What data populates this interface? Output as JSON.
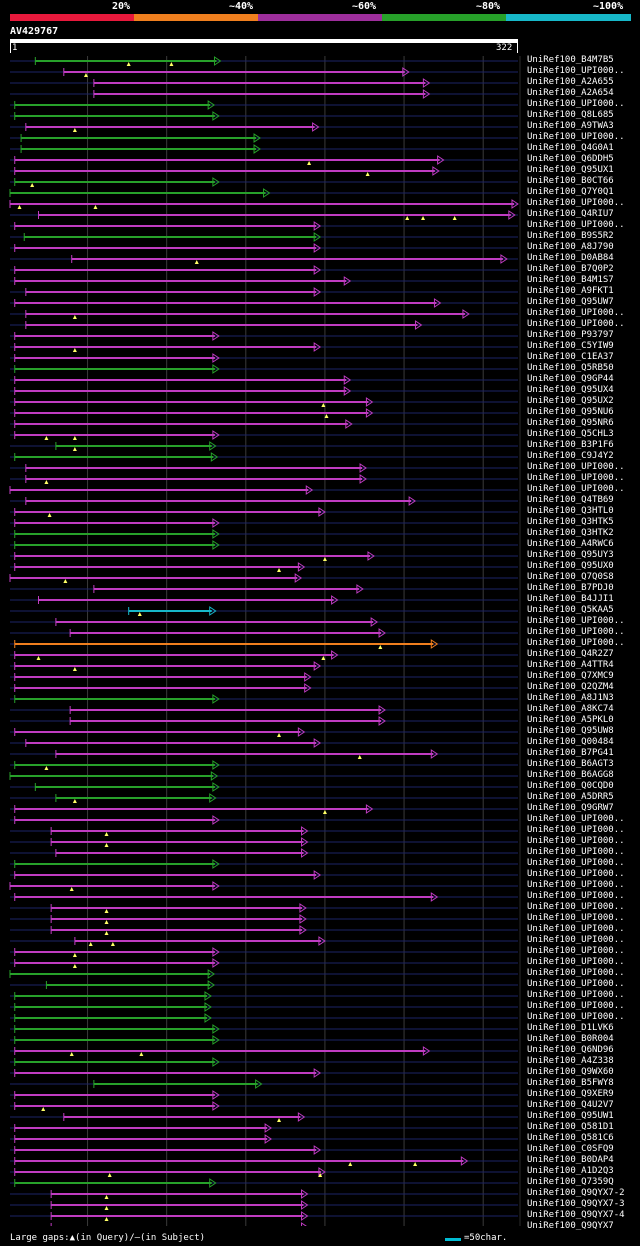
{
  "legend": {
    "labels": [
      "20%",
      "~40%",
      "~60%",
      "~80%",
      "~100%"
    ],
    "colors": [
      "#e8193c",
      "#f07f1e",
      "#9e2e9c",
      "#27a12a",
      "#17b8c9"
    ]
  },
  "query": {
    "id": "AV429767",
    "start": "1",
    "end": "322"
  },
  "footer": {
    "note": "Large gaps:▲(in Query)/—(in Subject)",
    "scale": "=50char."
  },
  "chart_data": {
    "type": "alignment-overview",
    "query_length": 322,
    "tick_positions": [
      50,
      100,
      150,
      200,
      250,
      300
    ],
    "legend_colors": {
      "green": "#27a12a",
      "magenta": "#c03cc2",
      "cyan": "#17b8c9",
      "orange": "#f07f1e"
    },
    "hits": [
      {
        "label": "UniRef100_B4M7B5",
        "start": 17,
        "end": 134,
        "color": "green",
        "gaps": [
          76,
          103
        ]
      },
      {
        "label": "UniRef100_UPI000..",
        "start": 35,
        "end": 253,
        "color": "magenta",
        "gaps": [
          49
        ]
      },
      {
        "label": "UniRef100_A2A655",
        "start": 54,
        "end": 266,
        "color": "magenta",
        "gaps": []
      },
      {
        "label": "UniRef100_A2A654",
        "start": 54,
        "end": 266,
        "color": "magenta",
        "gaps": []
      },
      {
        "label": "UniRef100_UPI000..",
        "start": 4,
        "end": 130,
        "color": "green",
        "gaps": []
      },
      {
        "label": "UniRef100_Q8L685",
        "start": 4,
        "end": 133,
        "color": "green",
        "gaps": []
      },
      {
        "label": "UniRef100_A9TWA3",
        "start": 11,
        "end": 196,
        "color": "magenta",
        "gaps": [
          42
        ]
      },
      {
        "label": "UniRef100_UPI000..",
        "start": 8,
        "end": 159,
        "color": "green",
        "gaps": []
      },
      {
        "label": "UniRef100_Q4G0A1",
        "start": 8,
        "end": 159,
        "color": "green",
        "gaps": []
      },
      {
        "label": "UniRef100_Q6DDH5",
        "start": 4,
        "end": 275,
        "color": "magenta",
        "gaps": [
          190
        ]
      },
      {
        "label": "UniRef100_Q95UX1",
        "start": 4,
        "end": 272,
        "color": "magenta",
        "gaps": [
          227
        ]
      },
      {
        "label": "UniRef100_B0CT66",
        "start": 4,
        "end": 133,
        "color": "green",
        "gaps": [
          15
        ]
      },
      {
        "label": "UniRef100_Q7Y0Q1",
        "start": 1,
        "end": 165,
        "color": "green",
        "gaps": []
      },
      {
        "label": "UniRef100_UPI000..",
        "start": 1,
        "end": 322,
        "color": "magenta",
        "gaps": [
          7,
          55
        ]
      },
      {
        "label": "UniRef100_Q4RIU7",
        "start": 19,
        "end": 320,
        "color": "magenta",
        "gaps": [
          252,
          262,
          282
        ]
      },
      {
        "label": "UniRef100_UPI000..",
        "start": 4,
        "end": 197,
        "color": "magenta",
        "gaps": []
      },
      {
        "label": "UniRef100_B9S5R2",
        "start": 10,
        "end": 197,
        "color": "green",
        "gaps": []
      },
      {
        "label": "UniRef100_A8J790",
        "start": 4,
        "end": 197,
        "color": "magenta",
        "gaps": []
      },
      {
        "label": "UniRef100_D0AB84",
        "start": 40,
        "end": 315,
        "color": "magenta",
        "gaps": [
          119
        ]
      },
      {
        "label": "UniRef100_B7Q0P2",
        "start": 4,
        "end": 197,
        "color": "magenta",
        "gaps": []
      },
      {
        "label": "UniRef100_B4M1S7",
        "start": 4,
        "end": 216,
        "color": "magenta",
        "gaps": []
      },
      {
        "label": "UniRef100_A9FKT1",
        "start": 11,
        "end": 197,
        "color": "magenta",
        "gaps": []
      },
      {
        "label": "UniRef100_Q95UW7",
        "start": 4,
        "end": 273,
        "color": "magenta",
        "gaps": []
      },
      {
        "label": "UniRef100_UPI000..",
        "start": 11,
        "end": 291,
        "color": "magenta",
        "gaps": [
          42
        ]
      },
      {
        "label": "UniRef100_UPI000..",
        "start": 11,
        "end": 261,
        "color": "magenta",
        "gaps": []
      },
      {
        "label": "UniRef100_P93797",
        "start": 4,
        "end": 133,
        "color": "magenta",
        "gaps": []
      },
      {
        "label": "UniRef100_C5YIW9",
        "start": 4,
        "end": 197,
        "color": "magenta",
        "gaps": [
          42
        ]
      },
      {
        "label": "UniRef100_C1EA37",
        "start": 4,
        "end": 133,
        "color": "magenta",
        "gaps": []
      },
      {
        "label": "UniRef100_Q5RB50",
        "start": 4,
        "end": 133,
        "color": "green",
        "gaps": []
      },
      {
        "label": "UniRef100_Q9GP44",
        "start": 4,
        "end": 216,
        "color": "magenta",
        "gaps": []
      },
      {
        "label": "UniRef100_Q95UX4",
        "start": 4,
        "end": 216,
        "color": "magenta",
        "gaps": []
      },
      {
        "label": "UniRef100_Q95UX2",
        "start": 4,
        "end": 230,
        "color": "magenta",
        "gaps": [
          199
        ]
      },
      {
        "label": "UniRef100_Q95NU6",
        "start": 4,
        "end": 230,
        "color": "magenta",
        "gaps": [
          201
        ]
      },
      {
        "label": "UniRef100_Q95NR6",
        "start": 4,
        "end": 217,
        "color": "magenta",
        "gaps": []
      },
      {
        "label": "UniRef100_Q5CHL3",
        "start": 4,
        "end": 133,
        "color": "magenta",
        "gaps": [
          24,
          42
        ]
      },
      {
        "label": "UniRef100_B3P1F6",
        "start": 30,
        "end": 131,
        "color": "green",
        "gaps": [
          42
        ]
      },
      {
        "label": "UniRef100_C9J4Y2",
        "start": 4,
        "end": 132,
        "color": "green",
        "gaps": []
      },
      {
        "label": "UniRef100_UPI000..",
        "start": 11,
        "end": 226,
        "color": "magenta",
        "gaps": []
      },
      {
        "label": "UniRef100_UPI000..",
        "start": 11,
        "end": 226,
        "color": "magenta",
        "gaps": [
          24
        ]
      },
      {
        "label": "UniRef100_UPI000..",
        "start": 1,
        "end": 192,
        "color": "magenta",
        "gaps": []
      },
      {
        "label": "UniRef100_Q4TB69",
        "start": 11,
        "end": 257,
        "color": "magenta",
        "gaps": []
      },
      {
        "label": "UniRef100_Q3HTL0",
        "start": 4,
        "end": 200,
        "color": "magenta",
        "gaps": [
          26
        ]
      },
      {
        "label": "UniRef100_Q3HTK5",
        "start": 4,
        "end": 133,
        "color": "magenta",
        "gaps": []
      },
      {
        "label": "UniRef100_Q3HTK2",
        "start": 4,
        "end": 133,
        "color": "green",
        "gaps": []
      },
      {
        "label": "UniRef100_A4RWC6",
        "start": 4,
        "end": 133,
        "color": "green",
        "gaps": []
      },
      {
        "label": "UniRef100_Q95UY3",
        "start": 4,
        "end": 231,
        "color": "magenta",
        "gaps": [
          200
        ]
      },
      {
        "label": "UniRef100_Q95UX0",
        "start": 4,
        "end": 187,
        "color": "magenta",
        "gaps": [
          171
        ]
      },
      {
        "label": "UniRef100_Q7Q0S8",
        "start": 1,
        "end": 185,
        "color": "magenta",
        "gaps": [
          36
        ]
      },
      {
        "label": "UniRef100_B7PDJ0",
        "start": 54,
        "end": 224,
        "color": "magenta",
        "gaps": []
      },
      {
        "label": "UniRef100_B4JJI1",
        "start": 19,
        "end": 208,
        "color": "magenta",
        "gaps": []
      },
      {
        "label": "UniRef100_Q5KAA5",
        "start": 76,
        "end": 131,
        "color": "cyan",
        "gaps": [
          83
        ]
      },
      {
        "label": "UniRef100_UPI000..",
        "start": 30,
        "end": 233,
        "color": "magenta",
        "gaps": []
      },
      {
        "label": "UniRef100_UPI000..",
        "start": 39,
        "end": 238,
        "color": "magenta",
        "gaps": []
      },
      {
        "label": "UniRef100_UPI000..",
        "start": 4,
        "end": 271,
        "color": "orange",
        "gaps": [
          235
        ]
      },
      {
        "label": "UniRef100_Q4R2Z7",
        "start": 4,
        "end": 208,
        "color": "magenta",
        "gaps": [
          19,
          199
        ]
      },
      {
        "label": "UniRef100_A4TTR4",
        "start": 4,
        "end": 197,
        "color": "magenta",
        "gaps": [
          42
        ]
      },
      {
        "label": "UniRef100_Q7XMC9",
        "start": 4,
        "end": 191,
        "color": "magenta",
        "gaps": []
      },
      {
        "label": "UniRef100_Q2QZM4",
        "start": 4,
        "end": 191,
        "color": "magenta",
        "gaps": []
      },
      {
        "label": "UniRef100_A8J1N3",
        "start": 4,
        "end": 133,
        "color": "green",
        "gaps": []
      },
      {
        "label": "UniRef100_A8KC74",
        "start": 39,
        "end": 238,
        "color": "magenta",
        "gaps": []
      },
      {
        "label": "UniRef100_A5PKL0",
        "start": 39,
        "end": 238,
        "color": "magenta",
        "gaps": []
      },
      {
        "label": "UniRef100_Q95UW8",
        "start": 4,
        "end": 187,
        "color": "magenta",
        "gaps": [
          171
        ]
      },
      {
        "label": "UniRef100_Q00484",
        "start": 11,
        "end": 197,
        "color": "magenta",
        "gaps": []
      },
      {
        "label": "UniRef100_B7PG41",
        "start": 30,
        "end": 271,
        "color": "magenta",
        "gaps": [
          222
        ]
      },
      {
        "label": "UniRef100_B6AGT3",
        "start": 4,
        "end": 133,
        "color": "green",
        "gaps": [
          24
        ]
      },
      {
        "label": "UniRef100_B6AGG8",
        "start": 1,
        "end": 132,
        "color": "green",
        "gaps": []
      },
      {
        "label": "UniRef100_Q0CQD0",
        "start": 17,
        "end": 133,
        "color": "green",
        "gaps": []
      },
      {
        "label": "UniRef100_A5DRR5",
        "start": 30,
        "end": 131,
        "color": "green",
        "gaps": [
          42
        ]
      },
      {
        "label": "UniRef100_Q9GRW7",
        "start": 4,
        "end": 230,
        "color": "magenta",
        "gaps": [
          200
        ]
      },
      {
        "label": "UniRef100_UPI000..",
        "start": 4,
        "end": 133,
        "color": "magenta",
        "gaps": []
      },
      {
        "label": "UniRef100_UPI000..",
        "start": 27,
        "end": 189,
        "color": "magenta",
        "gaps": [
          62
        ]
      },
      {
        "label": "UniRef100_UPI000..",
        "start": 27,
        "end": 189,
        "color": "magenta",
        "gaps": [
          62
        ]
      },
      {
        "label": "UniRef100_UPI000..",
        "start": 30,
        "end": 189,
        "color": "magenta",
        "gaps": []
      },
      {
        "label": "UniRef100_UPI000..",
        "start": 4,
        "end": 133,
        "color": "green",
        "gaps": []
      },
      {
        "label": "UniRef100_UPI000..",
        "start": 4,
        "end": 197,
        "color": "magenta",
        "gaps": []
      },
      {
        "label": "UniRef100_UPI000..",
        "start": 1,
        "end": 133,
        "color": "magenta",
        "gaps": [
          40
        ]
      },
      {
        "label": "UniRef100_UPI000..",
        "start": 4,
        "end": 271,
        "color": "magenta",
        "gaps": []
      },
      {
        "label": "UniRef100_UPI000..",
        "start": 27,
        "end": 188,
        "color": "magenta",
        "gaps": [
          62
        ]
      },
      {
        "label": "UniRef100_UPI000..",
        "start": 27,
        "end": 188,
        "color": "magenta",
        "gaps": [
          62
        ]
      },
      {
        "label": "UniRef100_UPI000..",
        "start": 27,
        "end": 188,
        "color": "magenta",
        "gaps": [
          62
        ]
      },
      {
        "label": "UniRef100_UPI000..",
        "start": 42,
        "end": 200,
        "color": "magenta",
        "gaps": [
          52,
          66
        ]
      },
      {
        "label": "UniRef100_UPI000..",
        "start": 4,
        "end": 133,
        "color": "magenta",
        "gaps": [
          42
        ]
      },
      {
        "label": "UniRef100_UPI000..",
        "start": 4,
        "end": 133,
        "color": "magenta",
        "gaps": [
          42
        ]
      },
      {
        "label": "UniRef100_UPI000..",
        "start": 1,
        "end": 130,
        "color": "green",
        "gaps": []
      },
      {
        "label": "UniRef100_UPI000..",
        "start": 24,
        "end": 130,
        "color": "green",
        "gaps": []
      },
      {
        "label": "UniRef100_UPI000..",
        "start": 4,
        "end": 128,
        "color": "green",
        "gaps": []
      },
      {
        "label": "UniRef100_UPI000..",
        "start": 4,
        "end": 128,
        "color": "green",
        "gaps": []
      },
      {
        "label": "UniRef100_UPI000..",
        "start": 4,
        "end": 128,
        "color": "green",
        "gaps": []
      },
      {
        "label": "UniRef100_D1LVK6",
        "start": 4,
        "end": 133,
        "color": "green",
        "gaps": []
      },
      {
        "label": "UniRef100_B0R004",
        "start": 4,
        "end": 133,
        "color": "green",
        "gaps": []
      },
      {
        "label": "UniRef100_Q6ND96",
        "start": 4,
        "end": 266,
        "color": "magenta",
        "gaps": [
          40,
          84
        ]
      },
      {
        "label": "UniRef100_A4Z338",
        "start": 4,
        "end": 133,
        "color": "green",
        "gaps": []
      },
      {
        "label": "UniRef100_Q9WX60",
        "start": 4,
        "end": 197,
        "color": "magenta",
        "gaps": []
      },
      {
        "label": "UniRef100_B5FWY8",
        "start": 54,
        "end": 160,
        "color": "green",
        "gaps": []
      },
      {
        "label": "UniRef100_Q9XER9",
        "start": 4,
        "end": 133,
        "color": "magenta",
        "gaps": []
      },
      {
        "label": "UniRef100_Q4U2V7",
        "start": 4,
        "end": 133,
        "color": "magenta",
        "gaps": [
          22
        ]
      },
      {
        "label": "UniRef100_Q95UW1",
        "start": 35,
        "end": 187,
        "color": "magenta",
        "gaps": [
          171
        ]
      },
      {
        "label": "UniRef100_Q581D1",
        "start": 4,
        "end": 166,
        "color": "magenta",
        "gaps": []
      },
      {
        "label": "UniRef100_Q581C6",
        "start": 4,
        "end": 166,
        "color": "magenta",
        "gaps": []
      },
      {
        "label": "UniRef100_C0SFQ9",
        "start": 4,
        "end": 197,
        "color": "magenta",
        "gaps": []
      },
      {
        "label": "UniRef100_B0DAP4",
        "start": 4,
        "end": 290,
        "color": "magenta",
        "gaps": [
          216,
          257
        ]
      },
      {
        "label": "UniRef100_A1D2Q3",
        "start": 4,
        "end": 200,
        "color": "magenta",
        "gaps": [
          64,
          197
        ]
      },
      {
        "label": "UniRef100_Q7359Q",
        "start": 4,
        "end": 131,
        "color": "green",
        "gaps": []
      },
      {
        "label": "UniRef100_Q9QYX7-2",
        "start": 27,
        "end": 189,
        "color": "magenta",
        "gaps": [
          62
        ]
      },
      {
        "label": "UniRef100_Q9QYX7-3",
        "start": 27,
        "end": 189,
        "color": "magenta",
        "gaps": [
          62
        ]
      },
      {
        "label": "UniRef100_Q9QYX7-4",
        "start": 27,
        "end": 189,
        "color": "magenta",
        "gaps": [
          62
        ]
      },
      {
        "label": "UniRef100_Q9QYX7",
        "start": 27,
        "end": 189,
        "color": "magenta",
        "gaps": [
          62
        ]
      }
    ]
  }
}
